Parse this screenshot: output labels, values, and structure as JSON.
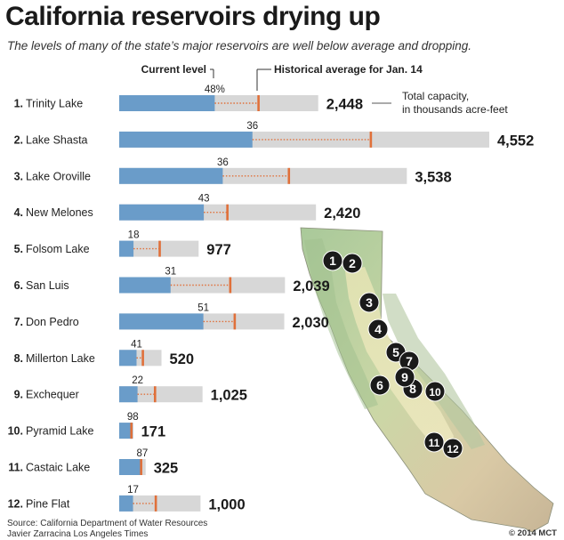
{
  "title": "California reservoirs drying up",
  "subtitle": "The levels of many of the state’s major reservoirs are well below average and dropping.",
  "legend": {
    "current_label": "Current level",
    "historical_label": "Historical average for Jan. 14",
    "capacity_label_line1": "Total capacity,",
    "capacity_label_line2": "in thousands acre-feet"
  },
  "source": "Source: California Department of Water Resources",
  "credit": "Javier Zarracina Los Angeles Times",
  "copyright": "© 2014 MCT",
  "colors": {
    "current": "#6a9cc9",
    "capacity": "#d7d7d7",
    "historical": "#e0703a",
    "map_marker": "#1a1a1a"
  },
  "chart_data": {
    "type": "bar",
    "title": "California reservoirs drying up",
    "units": "Total capacity, in thousands acre-feet",
    "categories": [
      "Trinity Lake",
      "Lake Shasta",
      "Lake Oroville",
      "New Melones",
      "Folsom Lake",
      "San Luis",
      "Don Pedro",
      "Millerton Lake",
      "Exchequer",
      "Pyramid Lake",
      "Castaic Lake",
      "Pine Flat"
    ],
    "numbers": [
      "1.",
      "2.",
      "3.",
      "4.",
      "5.",
      "6.",
      "7.",
      "8.",
      "9.",
      "10.",
      "11.",
      "12."
    ],
    "capacity": [
      2448,
      4552,
      3538,
      2420,
      977,
      2039,
      2030,
      520,
      1025,
      171,
      325,
      1000
    ],
    "capacity_labels": [
      "2,448",
      "4,552",
      "3,538",
      "2,420",
      "977",
      "2,039",
      "2,030",
      "520",
      "1,025",
      "171",
      "325",
      "1,000"
    ],
    "current_percent": [
      48,
      36,
      36,
      43,
      18,
      31,
      51,
      41,
      22,
      98,
      87,
      17
    ],
    "current_labels": [
      "48%",
      "36",
      "36",
      "43",
      "18",
      "31",
      "51",
      "41",
      "22",
      "98",
      "87",
      "17"
    ],
    "historical_percent": [
      70,
      68,
      59,
      55,
      51,
      67,
      70,
      56,
      43,
      88,
      83,
      45
    ]
  },
  "map": {
    "markers": [
      "1",
      "2",
      "3",
      "4",
      "5",
      "6",
      "7",
      "8",
      "9",
      "10",
      "11",
      "12"
    ]
  }
}
